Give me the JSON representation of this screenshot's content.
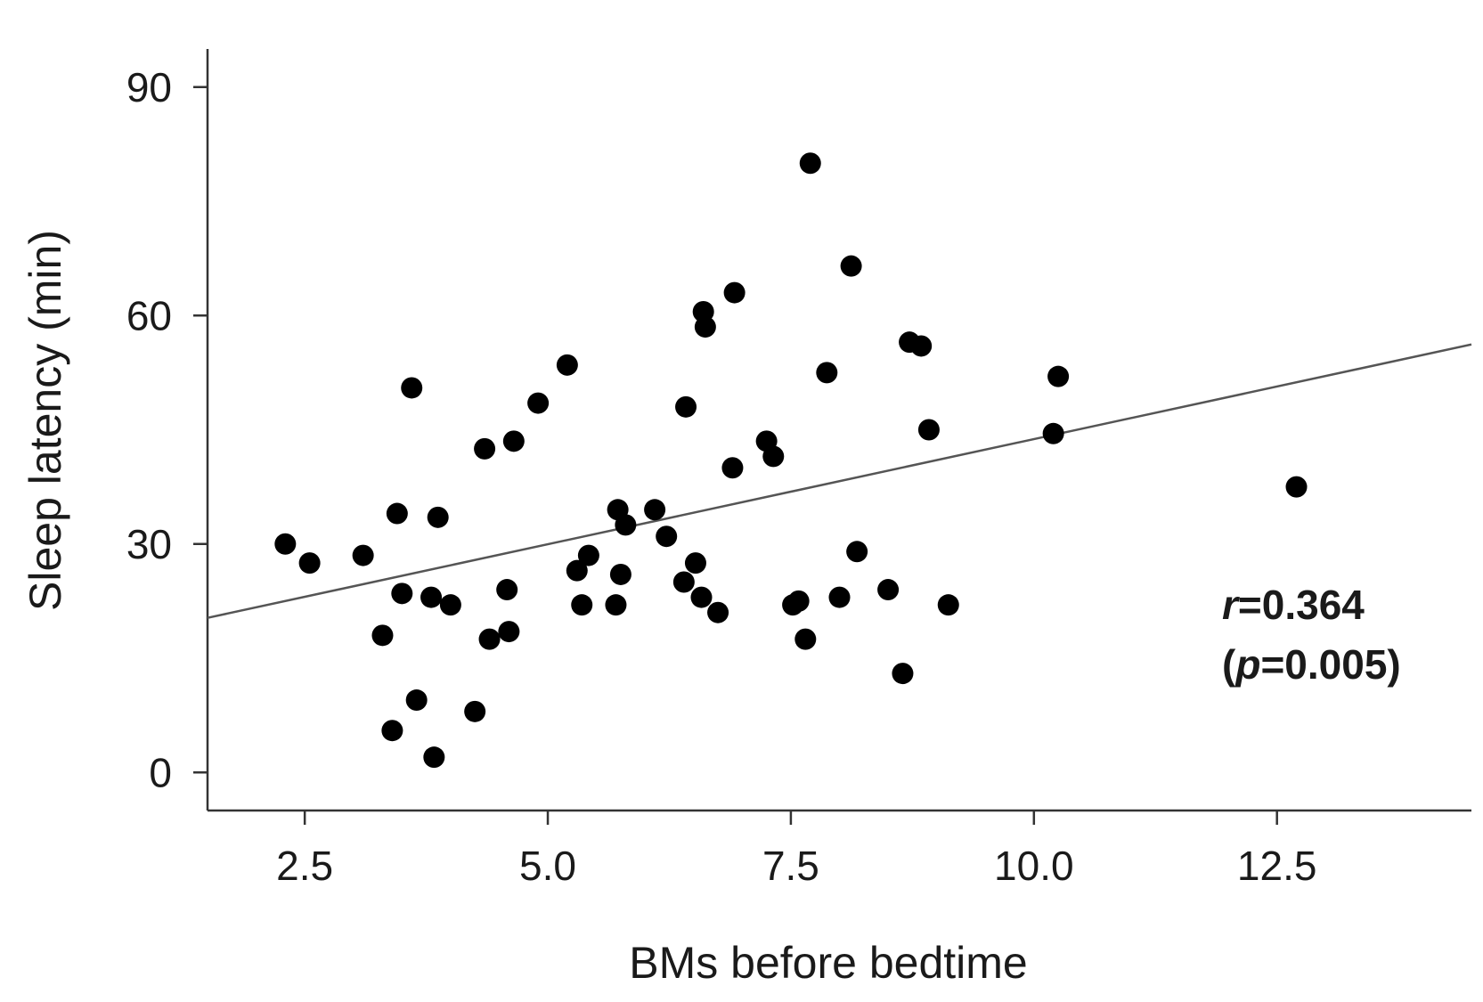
{
  "chart_data": {
    "type": "scatter",
    "xlabel": "BMs before bedtime",
    "ylabel": "Sleep latency (min)",
    "xlim": [
      1.5,
      14.5
    ],
    "ylim": [
      -5,
      95
    ],
    "x_ticks": [
      2.5,
      5.0,
      7.5,
      10.0,
      12.5
    ],
    "x_tick_labels": [
      "2.5",
      "5.0",
      "7.5",
      "10.0",
      "12.5"
    ],
    "y_ticks": [
      0,
      30,
      60,
      90
    ],
    "y_tick_labels": [
      "0",
      "30",
      "60",
      "90"
    ],
    "grid": false,
    "points": [
      {
        "x": 2.3,
        "y": 30
      },
      {
        "x": 2.55,
        "y": 27.5
      },
      {
        "x": 3.1,
        "y": 28.5
      },
      {
        "x": 3.3,
        "y": 18
      },
      {
        "x": 3.4,
        "y": 5.5
      },
      {
        "x": 3.45,
        "y": 34
      },
      {
        "x": 3.5,
        "y": 23.5
      },
      {
        "x": 3.6,
        "y": 50.5
      },
      {
        "x": 3.65,
        "y": 9.5
      },
      {
        "x": 3.8,
        "y": 23
      },
      {
        "x": 3.83,
        "y": 2
      },
      {
        "x": 3.87,
        "y": 33.5
      },
      {
        "x": 4.0,
        "y": 22
      },
      {
        "x": 4.25,
        "y": 8
      },
      {
        "x": 4.35,
        "y": 42.5
      },
      {
        "x": 4.4,
        "y": 17.5
      },
      {
        "x": 4.58,
        "y": 24
      },
      {
        "x": 4.6,
        "y": 18.5
      },
      {
        "x": 4.65,
        "y": 43.5
      },
      {
        "x": 4.9,
        "y": 48.5
      },
      {
        "x": 5.2,
        "y": 53.5
      },
      {
        "x": 5.3,
        "y": 26.5
      },
      {
        "x": 5.35,
        "y": 22
      },
      {
        "x": 5.42,
        "y": 28.5
      },
      {
        "x": 5.7,
        "y": 22
      },
      {
        "x": 5.72,
        "y": 34.5
      },
      {
        "x": 5.75,
        "y": 26
      },
      {
        "x": 5.8,
        "y": 32.5
      },
      {
        "x": 6.1,
        "y": 34.5
      },
      {
        "x": 6.22,
        "y": 31
      },
      {
        "x": 6.4,
        "y": 25
      },
      {
        "x": 6.42,
        "y": 48
      },
      {
        "x": 6.52,
        "y": 27.5
      },
      {
        "x": 6.58,
        "y": 23
      },
      {
        "x": 6.6,
        "y": 60.5
      },
      {
        "x": 6.62,
        "y": 58.5
      },
      {
        "x": 6.75,
        "y": 21
      },
      {
        "x": 6.9,
        "y": 40
      },
      {
        "x": 6.92,
        "y": 63
      },
      {
        "x": 7.25,
        "y": 43.5
      },
      {
        "x": 7.32,
        "y": 41.5
      },
      {
        "x": 7.52,
        "y": 22
      },
      {
        "x": 7.58,
        "y": 22.5
      },
      {
        "x": 7.65,
        "y": 17.5
      },
      {
        "x": 7.7,
        "y": 80
      },
      {
        "x": 7.87,
        "y": 52.5
      },
      {
        "x": 8.0,
        "y": 23
      },
      {
        "x": 8.12,
        "y": 66.5
      },
      {
        "x": 8.18,
        "y": 29
      },
      {
        "x": 8.5,
        "y": 24
      },
      {
        "x": 8.65,
        "y": 13
      },
      {
        "x": 8.72,
        "y": 56.5
      },
      {
        "x": 8.84,
        "y": 56
      },
      {
        "x": 8.92,
        "y": 45
      },
      {
        "x": 9.12,
        "y": 22
      },
      {
        "x": 10.2,
        "y": 44.5
      },
      {
        "x": 10.25,
        "y": 52
      },
      {
        "x": 12.7,
        "y": 37.5
      }
    ],
    "trendline": {
      "x": [
        1.5,
        14.5
      ],
      "y": [
        20.3,
        56.2
      ]
    },
    "annotation": {
      "r_symbol": "r",
      "r_text": "=0.364",
      "p_open": "(",
      "p_symbol": "p",
      "p_text": "=0.005)"
    },
    "colors": {
      "points": "#000000",
      "trendline": "#555555",
      "axis": "#333333"
    }
  }
}
